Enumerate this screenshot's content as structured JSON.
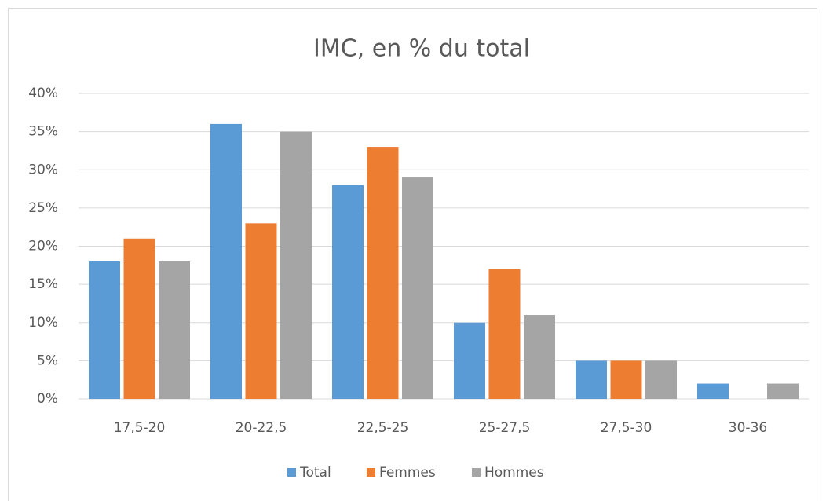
{
  "chart_data": {
    "type": "bar",
    "title": "IMC, en % du total",
    "categories": [
      "17,5-20",
      "20-22,5",
      "22,5-25",
      "25-27,5",
      "27,5-30",
      "30-36"
    ],
    "series": [
      {
        "name": "Total",
        "color": "#5b9bd5",
        "values": [
          18,
          36,
          28,
          10,
          5,
          2
        ]
      },
      {
        "name": "Femmes",
        "color": "#ed7d31",
        "values": [
          21,
          23,
          33,
          17,
          5,
          0
        ]
      },
      {
        "name": "Hommes",
        "color": "#a5a5a5",
        "values": [
          18,
          35,
          29,
          11,
          5,
          2
        ]
      }
    ],
    "ylim": [
      0,
      40
    ],
    "yticks": [
      {
        "value": 0,
        "label": "0%"
      },
      {
        "value": 5,
        "label": "5%"
      },
      {
        "value": 10,
        "label": "10%"
      },
      {
        "value": 15,
        "label": "15%"
      },
      {
        "value": 20,
        "label": "20%"
      },
      {
        "value": 25,
        "label": "25%"
      },
      {
        "value": 30,
        "label": "30%"
      },
      {
        "value": 35,
        "label": "35%"
      },
      {
        "value": 40,
        "label": "40%"
      }
    ],
    "grid": true,
    "legend": "bottom"
  }
}
